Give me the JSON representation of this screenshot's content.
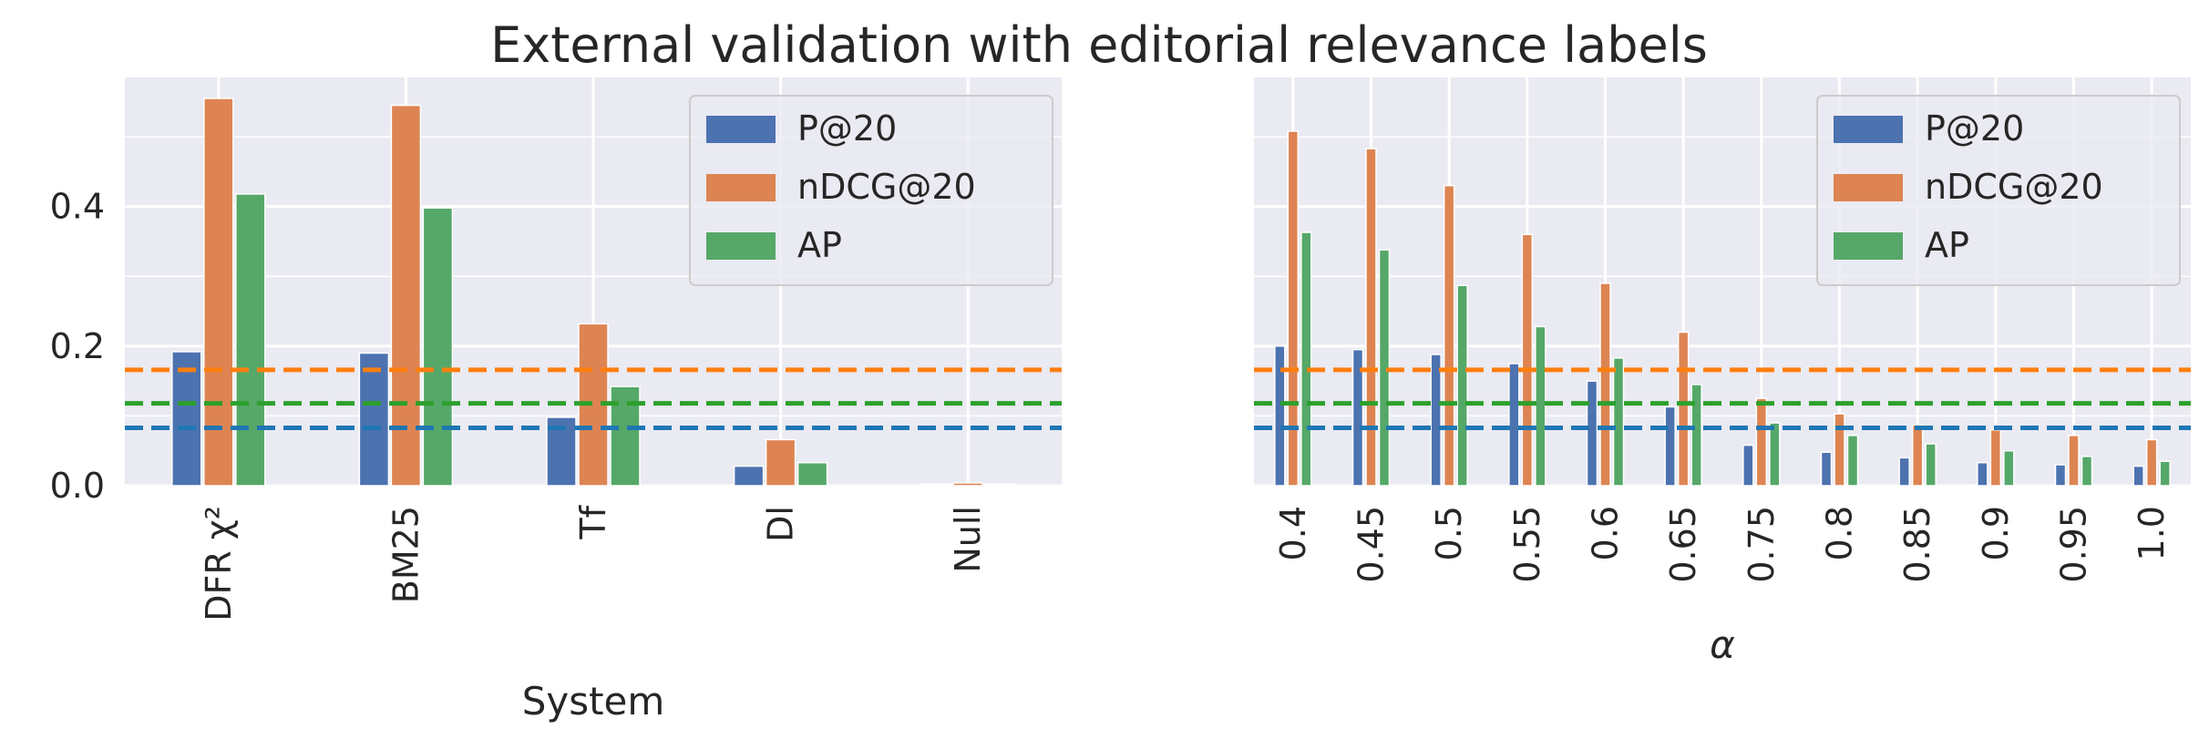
{
  "title": "External validation with editorial relevance labels",
  "colors": {
    "P@20": "#4c72b0",
    "nDCG@20": "#dd8452",
    "AP": "#55a868",
    "ref_P@20": "#1f77b4",
    "ref_nDCG@20": "#ff7f0e",
    "ref_AP": "#2ca02c",
    "panel_bg": "#eaeaf2",
    "grid": "#ffffff"
  },
  "chart_data": [
    {
      "type": "bar",
      "xlabel": "System",
      "ylabel": "",
      "ylim": [
        0,
        0.585
      ],
      "yticks": [
        "0.0",
        "0.2",
        "0.4"
      ],
      "grid": true,
      "legend": "top-right",
      "categories": [
        "DFR χ²",
        "BM25",
        "Tf",
        "Dl",
        "Null"
      ],
      "series": [
        {
          "name": "P@20",
          "values": [
            0.192,
            0.19,
            0.098,
            0.028,
            0.002
          ]
        },
        {
          "name": "nDCG@20",
          "values": [
            0.555,
            0.545,
            0.232,
            0.066,
            0.004
          ]
        },
        {
          "name": "AP",
          "values": [
            0.418,
            0.398,
            0.142,
            0.033,
            0.002
          ]
        }
      ],
      "reference_lines": [
        {
          "series": "P@20",
          "value": 0.083
        },
        {
          "series": "nDCG@20",
          "value": 0.166
        },
        {
          "series": "AP",
          "value": 0.118
        }
      ]
    },
    {
      "type": "bar",
      "xlabel": "α",
      "ylabel": "",
      "ylim": [
        0,
        0.585
      ],
      "grid": true,
      "legend": "top-right",
      "categories": [
        "0.4",
        "0.45",
        "0.5",
        "0.55",
        "0.6",
        "0.65",
        "0.75",
        "0.8",
        "0.85",
        "0.9",
        "0.95",
        "1.0"
      ],
      "series": [
        {
          "name": "P@20",
          "values": [
            0.2,
            0.195,
            0.188,
            0.175,
            0.15,
            0.113,
            0.058,
            0.048,
            0.04,
            0.033,
            0.03,
            0.028
          ]
        },
        {
          "name": "nDCG@20",
          "values": [
            0.508,
            0.483,
            0.43,
            0.36,
            0.29,
            0.22,
            0.125,
            0.103,
            0.087,
            0.08,
            0.072,
            0.066
          ]
        },
        {
          "name": "AP",
          "values": [
            0.363,
            0.338,
            0.287,
            0.228,
            0.183,
            0.145,
            0.09,
            0.072,
            0.06,
            0.05,
            0.042,
            0.035
          ]
        }
      ],
      "reference_lines": [
        {
          "series": "P@20",
          "value": 0.083
        },
        {
          "series": "nDCG@20",
          "value": 0.166
        },
        {
          "series": "AP",
          "value": 0.118
        }
      ]
    }
  ]
}
